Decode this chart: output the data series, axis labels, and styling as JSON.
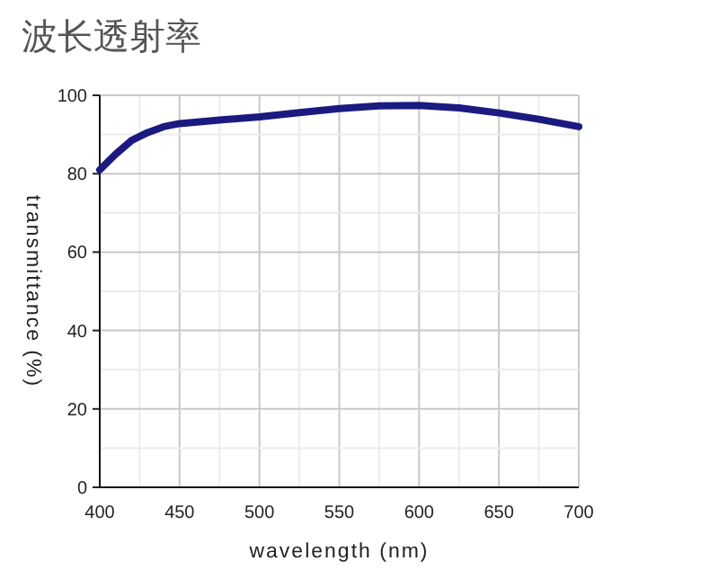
{
  "chart_data": {
    "type": "line",
    "title": "波长透射率",
    "xlabel": "wavelength (nm)",
    "ylabel": "transmittance (%)",
    "x": [
      400,
      410,
      420,
      430,
      440,
      450,
      475,
      500,
      525,
      550,
      575,
      600,
      625,
      650,
      675,
      700
    ],
    "series": [
      {
        "color": "#1c1a80",
        "values": [
          81,
          85,
          88.5,
          90.5,
          92,
          92.8,
          93.7,
          94.5,
          95.6,
          96.6,
          97.3,
          97.4,
          96.8,
          95.5,
          93.9,
          92
        ]
      }
    ],
    "xlim": [
      400,
      700
    ],
    "ylim": [
      0,
      100
    ],
    "xticks": [
      400,
      {
        "value": 425,
        "label": null
      },
      450,
      {
        "value": 475,
        "label": null
      },
      500,
      {
        "value": 525,
        "label": null
      },
      550,
      {
        "value": 575,
        "label": null
      },
      600,
      {
        "value": 625,
        "label": null
      },
      650,
      {
        "value": 675,
        "label": null
      },
      700
    ],
    "yticks": [
      0,
      {
        "value": 10,
        "label": null
      },
      20,
      {
        "value": 30,
        "label": null
      },
      40,
      {
        "value": 50,
        "label": null
      },
      60,
      {
        "value": 70,
        "label": null
      },
      80,
      {
        "value": 90,
        "label": null
      },
      100
    ],
    "grid": true,
    "marker": "none",
    "line_style": "solid"
  }
}
